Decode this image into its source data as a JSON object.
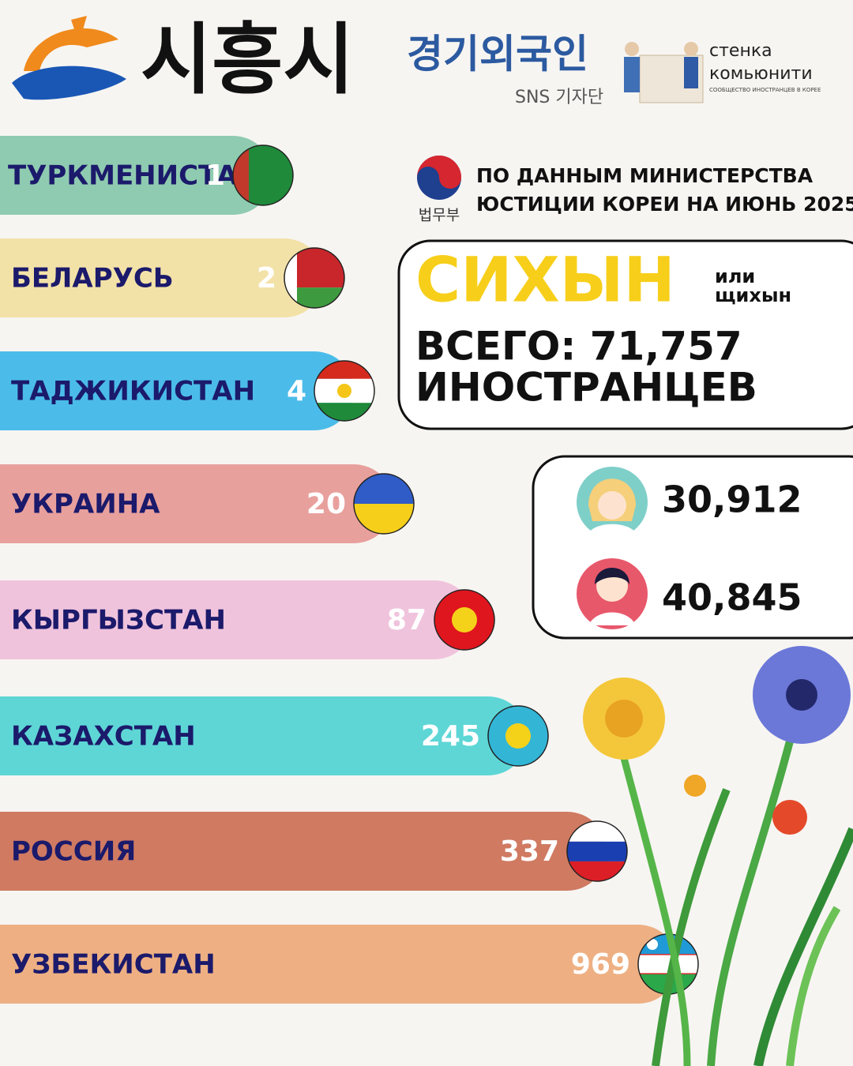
{
  "header": {
    "city": "시흥시",
    "partner": "경기외국인",
    "partner_sub": "SNS 기자단",
    "community": [
      "стенка",
      "комьюнити"
    ],
    "community_sub": "СООБЩЕСТВО ИНОСТРАНЦЕВ В КОРЕЕ"
  },
  "source": {
    "ministry": "법무부",
    "lines": [
      "ПО ДАННЫМ МИНИСТЕРСТВА",
      "ЮСТИЦИИ КОРЕИ НА ИЮНЬ 2025"
    ]
  },
  "summary": {
    "city": "СИХЫН",
    "alt": [
      "или",
      "щихын"
    ],
    "total": [
      "ВСЕГО: 71,757",
      "ИНОСТРАНЦЕВ"
    ]
  },
  "gender": [
    "30,912",
    "40,845"
  ],
  "countries": [
    {
      "name": "ТУРКМЕНИСТАН",
      "count": 1,
      "color": "#8fcbb0"
    },
    {
      "name": "БЕЛАРУСЬ",
      "count": 2,
      "color": "#f3e2a8"
    },
    {
      "name": "ТАДЖИКИСТАН",
      "count": 4,
      "color": "#4bbce9"
    },
    {
      "name": "УКРАИНА",
      "count": 20,
      "color": "#e8a09d"
    },
    {
      "name": "КЫРГЫЗСТАН",
      "count": 87,
      "color": "#f0c3dc"
    },
    {
      "name": "КАЗАХСТАН",
      "count": 245,
      "color": "#5ed6d6"
    },
    {
      "name": "РОССИЯ",
      "count": 337,
      "color": "#d07a62"
    },
    {
      "name": "УЗБЕКИСТАН",
      "count": 969,
      "color": "#eeb083"
    }
  ]
}
